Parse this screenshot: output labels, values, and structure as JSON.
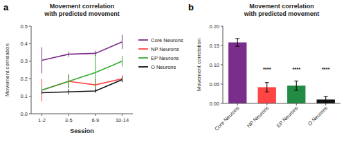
{
  "chart_data": [
    {
      "type": "line",
      "title": "Movement correlation\nwith predicted movement",
      "xlabel": "Session",
      "ylabel": "Movement correlation",
      "x": [
        1,
        2,
        3,
        4
      ],
      "xlim": [
        0.6,
        4.4
      ],
      "xticks": [
        {
          "value": 1,
          "label": "1-2"
        },
        {
          "value": 2,
          "label": "3-5"
        },
        {
          "value": 3,
          "label": "6-9"
        },
        {
          "value": 4,
          "label": "10-14"
        }
      ],
      "ylim": [
        0.0,
        0.5
      ],
      "yticks": [
        {
          "value": 0,
          "label": "0.0"
        },
        0.1,
        0.2,
        0.3,
        0.4,
        0.5
      ],
      "series": [
        {
          "name": "Core Neurons",
          "color": "#7B2D8B",
          "values": [
            0.305,
            0.34,
            0.345,
            0.41
          ],
          "errors": [
            0.075,
            0.015,
            0.015,
            0.04
          ]
        },
        {
          "name": "NP Neurons",
          "color": "#FF4444",
          "values": [
            0.135,
            0.185,
            0.165,
            0.2
          ],
          "errors": [
            0.065,
            0.04,
            0.035,
            0.02
          ]
        },
        {
          "name": "EP Neurons",
          "color": "#33AA33",
          "values": [
            0.135,
            0.185,
            0.235,
            0.3
          ],
          "errors": [
            0.02,
            0.04,
            0.11,
            0.03
          ]
        },
        {
          "name": "O Neurons",
          "color": "#111111",
          "values": [
            0.12,
            0.125,
            0.13,
            0.195
          ],
          "errors": [
            0.01,
            0.015,
            0.01,
            0.015
          ]
        }
      ],
      "legend": "right",
      "grid": false,
      "annotations": [
        {
          "text": "a"
        }
      ]
    },
    {
      "type": "bar",
      "title": "Movement correlation\nwith predicted movement",
      "ylabel": "Movement correlation",
      "categories": [
        "Core Neurons",
        "NP Neurons",
        "EP Neurons",
        "O Neurons"
      ],
      "values": [
        0.158,
        0.042,
        0.046,
        0.01
      ],
      "errors": [
        0.01,
        0.012,
        0.012,
        0.008
      ],
      "colors": [
        "#7B2D8B",
        "#FF4444",
        "#228B44",
        "#111111"
      ],
      "ylim": [
        0.0,
        0.2
      ],
      "yticks": [
        {
          "value": 0,
          "label": "0.00"
        },
        {
          "value": 0.05,
          "label": "0.05"
        },
        {
          "value": 0.1,
          "label": "0.10"
        },
        {
          "value": 0.15,
          "label": "0.15"
        },
        {
          "value": 0.2,
          "label": "0.20"
        }
      ],
      "grid": false,
      "annotations": [
        {
          "text": "b"
        },
        {
          "x": "NP Neurons",
          "y": 0.088,
          "text": "****"
        },
        {
          "x": "EP Neurons",
          "y": 0.088,
          "text": "****"
        },
        {
          "x": "O Neurons",
          "y": 0.088,
          "text": "****"
        }
      ]
    }
  ]
}
